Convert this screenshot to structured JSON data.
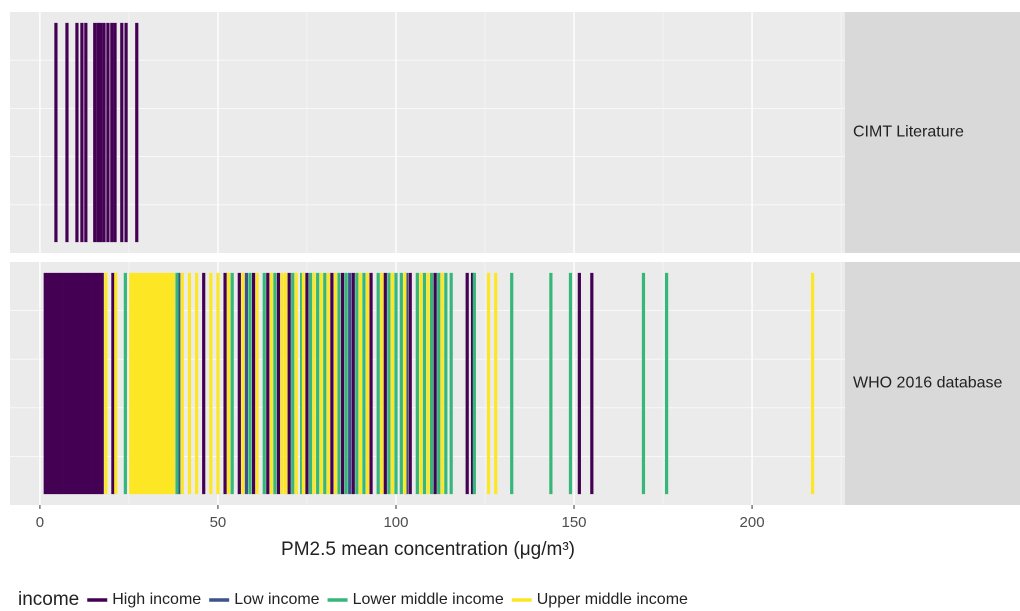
{
  "chart_data": {
    "type": "rug",
    "xlabel": "PM2.5 mean concentration (μg/m³)",
    "xlim": [
      -8.4,
      226.1
    ],
    "xticks": [
      0,
      50,
      100,
      150,
      200
    ],
    "minor_xticks": [
      25,
      75,
      125,
      175,
      225
    ],
    "grid": true,
    "legend_title": "income",
    "legend_position": "bottom",
    "series": [
      {
        "name": "High income",
        "color": "#440154"
      },
      {
        "name": "Low income",
        "color": "#3b528b"
      },
      {
        "name": "Lower middle income",
        "color": "#35b779"
      },
      {
        "name": "Upper middle income",
        "color": "#fde725"
      }
    ],
    "facets": [
      {
        "label": "CIMT Literature",
        "values": [
          [
            4.5,
            7.6,
            10.4,
            11.8,
            12.9,
            15.4,
            16.3,
            17.1,
            18.0,
            19.1,
            20.2,
            21.1,
            23.0,
            24.2,
            27.2
          ],
          [],
          [],
          []
        ]
      },
      {
        "label": "WHO 2016 database",
        "values": [
          [
            1.5,
            2.3,
            3.1,
            3.9,
            4.7,
            5.5,
            6.3,
            7.1,
            7.9,
            8.7,
            9.5,
            10.3,
            11.1,
            11.9,
            12.7,
            13.5,
            14.3,
            15.1,
            15.9,
            16.7,
            17.5,
            20.5,
            46,
            52,
            56,
            60,
            64,
            67,
            70,
            75,
            82,
            85,
            88,
            93,
            97,
            104,
            111,
            120,
            121.5,
            151.5,
            155
          ],
          [
            39,
            58,
            87,
            103
          ],
          [
            24,
            38.5,
            54,
            59,
            63,
            66,
            71,
            73.5,
            76,
            78,
            80,
            84,
            86,
            89,
            91,
            95,
            98,
            100,
            101.5,
            106,
            108,
            110,
            112,
            114,
            115.5,
            122,
            132.5,
            143.5,
            149,
            169.5,
            176
          ],
          [
            18.5,
            21.3,
            25.5,
            26.3,
            27.1,
            27.9,
            28.7,
            29.5,
            30.3,
            31.1,
            31.9,
            32.7,
            33.5,
            34.3,
            35.1,
            35.9,
            36.7,
            37.5,
            40,
            42,
            44,
            48,
            50,
            53,
            57,
            61,
            65,
            68,
            69,
            72,
            74,
            77,
            79,
            81,
            83,
            90,
            92,
            96,
            99,
            102.5,
            107,
            109,
            113,
            126,
            128,
            217
          ]
        ]
      }
    ]
  }
}
